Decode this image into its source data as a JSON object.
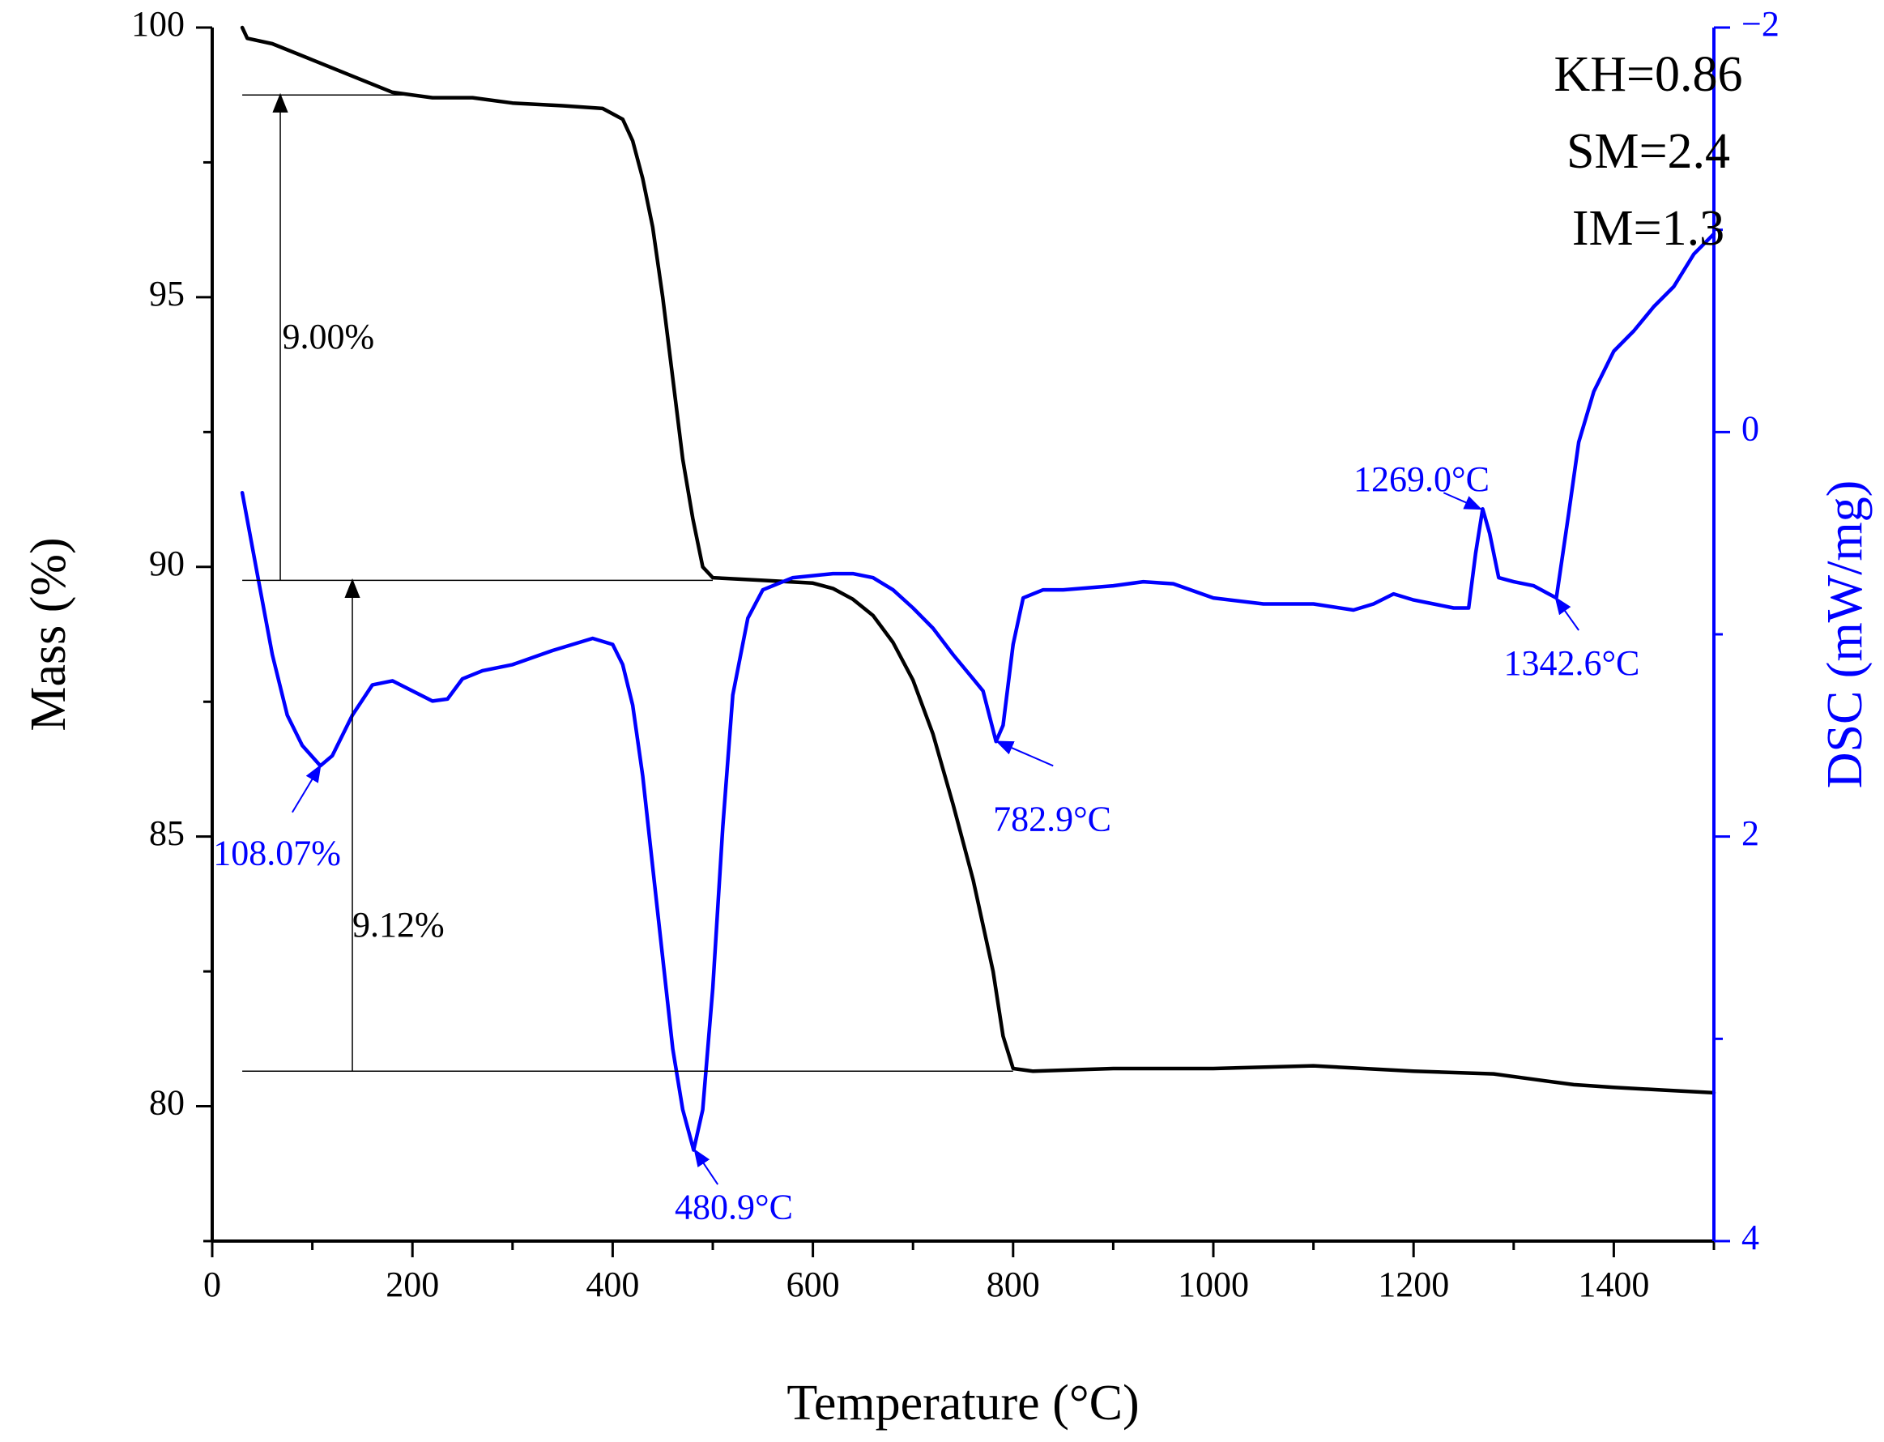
{
  "chart_data": {
    "type": "line",
    "title": "",
    "xlabel": "Temperature (°C)",
    "ylabel_left": "Mass (%)",
    "ylabel_right": "DSC (mW/mg)",
    "xlim": [
      0,
      1500
    ],
    "ylim_left": [
      77.5,
      100
    ],
    "ylim_right": [
      4,
      -2
    ],
    "x_ticks": [
      0,
      200,
      400,
      600,
      800,
      1000,
      1200,
      1400
    ],
    "y_left_ticks": [
      80,
      85,
      90,
      95,
      100
    ],
    "y_right_ticks": [
      -2,
      0,
      2,
      4
    ],
    "grid": false,
    "colors": {
      "mass": "#000000",
      "dsc": "#0000ff"
    },
    "series": [
      {
        "name": "Mass (TG)",
        "axis": "left",
        "x": [
          30,
          35,
          60,
          100,
          140,
          180,
          220,
          260,
          300,
          350,
          390,
          410,
          420,
          430,
          440,
          450,
          460,
          470,
          480,
          490,
          500,
          550,
          600,
          620,
          640,
          660,
          680,
          700,
          720,
          740,
          760,
          780,
          790,
          800,
          820,
          900,
          1000,
          1100,
          1200,
          1280,
          1320,
          1360,
          1400,
          1450,
          1500
        ],
        "y": [
          100,
          99.8,
          99.7,
          99.4,
          99.1,
          98.8,
          98.7,
          98.7,
          98.6,
          98.55,
          98.5,
          98.3,
          97.9,
          97.2,
          96.3,
          95.0,
          93.5,
          92.0,
          90.9,
          90.0,
          89.8,
          89.75,
          89.7,
          89.6,
          89.4,
          89.1,
          88.6,
          87.9,
          86.9,
          85.6,
          84.2,
          82.5,
          81.3,
          80.7,
          80.65,
          80.7,
          80.7,
          80.75,
          80.65,
          80.6,
          80.5,
          80.4,
          80.35,
          80.3,
          80.25
        ]
      },
      {
        "name": "DSC",
        "axis": "right",
        "x": [
          30,
          45,
          60,
          75,
          90,
          108,
          120,
          140,
          160,
          180,
          200,
          220,
          235,
          250,
          270,
          300,
          340,
          380,
          400,
          410,
          420,
          430,
          440,
          450,
          460,
          470,
          480.9,
          490,
          500,
          510,
          520,
          535,
          550,
          580,
          620,
          640,
          660,
          680,
          700,
          720,
          740,
          760,
          770,
          782.9,
          790,
          800,
          810,
          830,
          850,
          900,
          930,
          960,
          1000,
          1050,
          1100,
          1140,
          1160,
          1180,
          1200,
          1220,
          1240,
          1255,
          1262,
          1269,
          1276,
          1285,
          1300,
          1320,
          1335,
          1342.6,
          1355,
          1365,
          1380,
          1400,
          1420,
          1440,
          1460,
          1480,
          1500
        ],
        "y": [
          0.3,
          0.7,
          1.1,
          1.4,
          1.55,
          1.65,
          1.6,
          1.4,
          1.25,
          1.23,
          1.28,
          1.33,
          1.32,
          1.22,
          1.18,
          1.15,
          1.08,
          1.02,
          1.05,
          1.15,
          1.35,
          1.7,
          2.15,
          2.6,
          3.05,
          3.35,
          3.55,
          3.35,
          2.75,
          1.95,
          1.3,
          0.92,
          0.78,
          0.72,
          0.7,
          0.7,
          0.72,
          0.78,
          0.87,
          0.97,
          1.1,
          1.22,
          1.28,
          1.53,
          1.45,
          1.05,
          0.82,
          0.78,
          0.78,
          0.76,
          0.74,
          0.75,
          0.82,
          0.85,
          0.85,
          0.88,
          0.85,
          0.8,
          0.83,
          0.85,
          0.87,
          0.87,
          0.6,
          0.38,
          0.5,
          0.72,
          0.74,
          0.76,
          0.8,
          0.82,
          0.4,
          0.05,
          -0.2,
          -0.4,
          -0.5,
          -0.62,
          -0.72,
          -0.88,
          -0.98
        ]
      }
    ],
    "reference_lines": [
      {
        "x1": 30,
        "x2": 200,
        "y": 98.75,
        "axis": "left"
      },
      {
        "x1": 30,
        "x2": 500,
        "y": 89.75,
        "axis": "left"
      },
      {
        "x1": 30,
        "x2": 800,
        "y": 80.65,
        "axis": "left"
      }
    ],
    "arrows": [
      {
        "x": 68,
        "y_from": 89.75,
        "y_to": 98.75,
        "axis": "left"
      },
      {
        "x": 140,
        "y_from": 80.65,
        "y_to": 89.75,
        "axis": "left"
      }
    ],
    "mass_loss_labels": [
      {
        "text": "9.00%",
        "x": 70,
        "y": 94.2
      },
      {
        "text": "9.12%",
        "x": 140,
        "y": 83.3
      }
    ],
    "peak_annotations": [
      {
        "text": "108.07%",
        "tip_x": 108,
        "tip_y": 1.65,
        "text_x": 1,
        "text_y": 2.1,
        "tail_x": 80,
        "tail_y": 1.88
      },
      {
        "text": "480.9°C",
        "tip_x": 482,
        "tip_y": 3.55,
        "text_x": 462,
        "text_y": 3.85,
        "tail_x": 505,
        "tail_y": 3.72
      },
      {
        "text": "782.9°C",
        "tip_x": 784,
        "tip_y": 1.53,
        "text_x": 780,
        "text_y": 1.93,
        "tail_x": 840,
        "tail_y": 1.65
      },
      {
        "text": "1269.0°C",
        "tip_x": 1267,
        "tip_y": 0.38,
        "text_x": 1140,
        "text_y": 0.25,
        "tail_x": 1230,
        "tail_y": 0.3
      },
      {
        "text": "1342.6°C",
        "tip_x": 1342,
        "tip_y": 0.82,
        "text_x": 1290,
        "text_y": 1.16,
        "tail_x": 1365,
        "tail_y": 0.98
      }
    ],
    "parameters": [
      "KH=0.86",
      "SM=2.4",
      "IM=1.3"
    ]
  }
}
